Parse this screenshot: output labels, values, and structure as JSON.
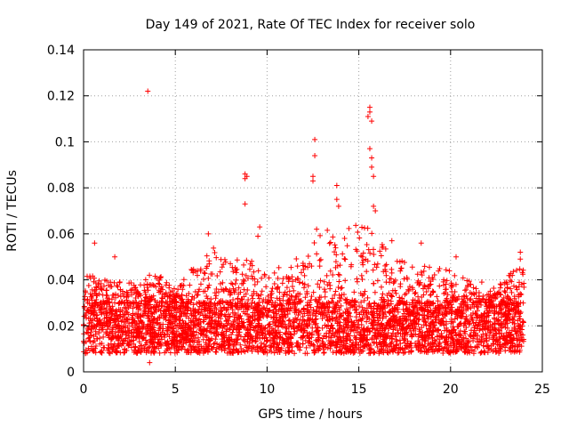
{
  "chart_data": {
    "type": "scatter",
    "title": "Day 149 of 2021, Rate Of TEC Index for receiver solo",
    "xlabel": "GPS time / hours",
    "ylabel": "ROTI / TECUs",
    "xlim": [
      0,
      25
    ],
    "ylim": [
      0,
      0.14
    ],
    "xticks": [
      0,
      5,
      10,
      15,
      20,
      25
    ],
    "xtick_labels": [
      "0",
      "5",
      "10",
      "15",
      "20",
      "25"
    ],
    "yticks": [
      0,
      0.02,
      0.04,
      0.06,
      0.08,
      0.1,
      0.12,
      0.14
    ],
    "ytick_labels": [
      "0",
      "0.02",
      "0.04",
      "0.06",
      "0.08",
      "0.1",
      "0.12",
      "0.14"
    ],
    "grid": true,
    "marker": "+",
    "color": "#ff0000",
    "x_range_of_data": [
      0,
      24
    ],
    "typical_band": [
      0.008,
      0.03
    ],
    "outliers": [
      {
        "x": 3.5,
        "y": 0.122
      },
      {
        "x": 3.6,
        "y": 0.004
      },
      {
        "x": 8.8,
        "y": 0.086
      },
      {
        "x": 8.8,
        "y": 0.084
      },
      {
        "x": 8.9,
        "y": 0.085
      },
      {
        "x": 8.8,
        "y": 0.073
      },
      {
        "x": 9.6,
        "y": 0.063
      },
      {
        "x": 9.5,
        "y": 0.059
      },
      {
        "x": 12.6,
        "y": 0.101
      },
      {
        "x": 12.6,
        "y": 0.094
      },
      {
        "x": 12.5,
        "y": 0.085
      },
      {
        "x": 12.5,
        "y": 0.083
      },
      {
        "x": 12.7,
        "y": 0.062
      },
      {
        "x": 13.8,
        "y": 0.081
      },
      {
        "x": 13.8,
        "y": 0.075
      },
      {
        "x": 13.9,
        "y": 0.072
      },
      {
        "x": 15.6,
        "y": 0.115
      },
      {
        "x": 15.6,
        "y": 0.113
      },
      {
        "x": 15.5,
        "y": 0.111
      },
      {
        "x": 15.7,
        "y": 0.109
      },
      {
        "x": 15.6,
        "y": 0.097
      },
      {
        "x": 15.7,
        "y": 0.093
      },
      {
        "x": 15.7,
        "y": 0.089
      },
      {
        "x": 15.8,
        "y": 0.085
      },
      {
        "x": 15.8,
        "y": 0.072
      },
      {
        "x": 15.9,
        "y": 0.07
      },
      {
        "x": 16.8,
        "y": 0.057
      },
      {
        "x": 18.4,
        "y": 0.056
      },
      {
        "x": 20.3,
        "y": 0.05
      },
      {
        "x": 21.7,
        "y": 0.039
      },
      {
        "x": 23.8,
        "y": 0.052
      },
      {
        "x": 23.8,
        "y": 0.049
      },
      {
        "x": 1.7,
        "y": 0.05
      },
      {
        "x": 0.6,
        "y": 0.056
      },
      {
        "x": 6.8,
        "y": 0.06
      }
    ],
    "envelope": [
      {
        "x": 0,
        "y": 0.044
      },
      {
        "x": 1,
        "y": 0.04
      },
      {
        "x": 2,
        "y": 0.04
      },
      {
        "x": 3,
        "y": 0.038
      },
      {
        "x": 4,
        "y": 0.045
      },
      {
        "x": 5,
        "y": 0.036
      },
      {
        "x": 6,
        "y": 0.046
      },
      {
        "x": 7,
        "y": 0.055
      },
      {
        "x": 8,
        "y": 0.048
      },
      {
        "x": 9,
        "y": 0.05
      },
      {
        "x": 10,
        "y": 0.046
      },
      {
        "x": 11,
        "y": 0.045
      },
      {
        "x": 12,
        "y": 0.052
      },
      {
        "x": 13,
        "y": 0.065
      },
      {
        "x": 14,
        "y": 0.06
      },
      {
        "x": 15,
        "y": 0.066
      },
      {
        "x": 16,
        "y": 0.06
      },
      {
        "x": 17,
        "y": 0.048
      },
      {
        "x": 18,
        "y": 0.05
      },
      {
        "x": 19,
        "y": 0.046
      },
      {
        "x": 20,
        "y": 0.044
      },
      {
        "x": 21,
        "y": 0.04
      },
      {
        "x": 22,
        "y": 0.034
      },
      {
        "x": 23,
        "y": 0.042
      },
      {
        "x": 24,
        "y": 0.046
      }
    ]
  }
}
